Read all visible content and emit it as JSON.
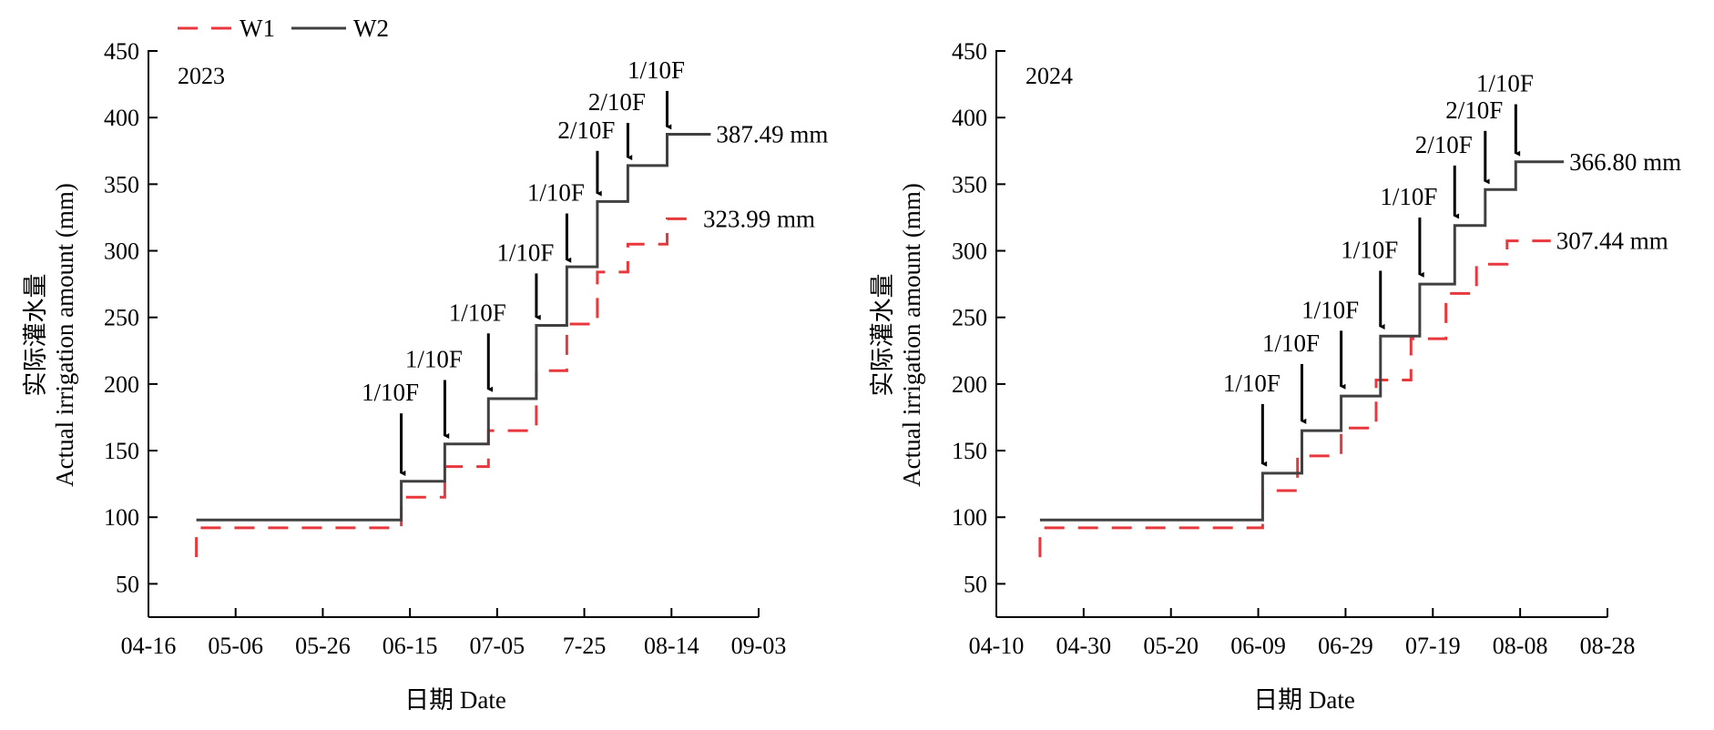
{
  "legend": {
    "items": [
      {
        "name": "W1",
        "color": "#e8383d",
        "dash": true
      },
      {
        "name": "W2",
        "color": "#404040",
        "dash": false
      }
    ]
  },
  "chart_data": [
    {
      "type": "line",
      "panel_label": "2023",
      "xlabel": "日期 Date",
      "ylabel_cn": "实际灌水量",
      "ylabel_en": "Actual irrigation amount (mm)",
      "xlim": [
        "2023-04-16",
        "2023-09-03"
      ],
      "ylim": [
        25,
        450
      ],
      "yticks": [
        50,
        100,
        150,
        200,
        250,
        300,
        350,
        400,
        450
      ],
      "xticks": [
        {
          "date": "2023-04-16",
          "label": "04-16"
        },
        {
          "date": "2023-05-06",
          "label": "05-06"
        },
        {
          "date": "2023-05-26",
          "label": "05-26"
        },
        {
          "date": "2023-06-15",
          "label": "06-15"
        },
        {
          "date": "2023-07-05",
          "label": "07-05"
        },
        {
          "date": "2023-07-25",
          "label": "7-25"
        },
        {
          "date": "2023-08-14",
          "label": "08-14"
        },
        {
          "date": "2023-09-03",
          "label": "09-03"
        }
      ],
      "series": [
        {
          "name": "W1",
          "color": "#e8383d",
          "dash": true,
          "steps": [
            {
              "date": "2023-04-27",
              "y0": 70,
              "y1": 92
            },
            {
              "date": "2023-06-13",
              "y0": 92,
              "y1": 115
            },
            {
              "date": "2023-06-23",
              "y0": 115,
              "y1": 138
            },
            {
              "date": "2023-07-03",
              "y0": 138,
              "y1": 165
            },
            {
              "date": "2023-07-14",
              "y0": 165,
              "y1": 210
            },
            {
              "date": "2023-07-21",
              "y0": 210,
              "y1": 245
            },
            {
              "date": "2023-07-28",
              "y0": 245,
              "y1": 284
            },
            {
              "date": "2023-08-04",
              "y0": 284,
              "y1": 305
            },
            {
              "date": "2023-08-13",
              "y0": 305,
              "y1": 323.99
            }
          ],
          "end": "2023-08-20"
        },
        {
          "name": "W2",
          "color": "#404040",
          "dash": false,
          "steps": [
            {
              "date": "2023-04-27",
              "y0": 98,
              "y1": 98
            },
            {
              "date": "2023-06-13",
              "y0": 98,
              "y1": 127
            },
            {
              "date": "2023-06-23",
              "y0": 127,
              "y1": 155
            },
            {
              "date": "2023-07-03",
              "y0": 155,
              "y1": 189
            },
            {
              "date": "2023-07-14",
              "y0": 189,
              "y1": 244
            },
            {
              "date": "2023-07-21",
              "y0": 244,
              "y1": 288
            },
            {
              "date": "2023-07-28",
              "y0": 288,
              "y1": 337
            },
            {
              "date": "2023-08-04",
              "y0": 337,
              "y1": 364
            },
            {
              "date": "2023-08-13",
              "y0": 364,
              "y1": 387.49
            }
          ],
          "end": "2023-08-23"
        }
      ],
      "end_labels": [
        {
          "text": "387.49 mm",
          "series": "W2"
        },
        {
          "text": "323.99 mm",
          "series": "W1"
        }
      ],
      "annotations": [
        {
          "text": "1/10F",
          "date": "2023-06-13",
          "arrow_top": 178,
          "arrow_tip": 133
        },
        {
          "text": "1/10F",
          "date": "2023-06-23",
          "arrow_top": 203,
          "arrow_tip": 161
        },
        {
          "text": "1/10F",
          "date": "2023-07-03",
          "arrow_top": 238,
          "arrow_tip": 196
        },
        {
          "text": "1/10F",
          "date": "2023-07-14",
          "arrow_top": 283,
          "arrow_tip": 250
        },
        {
          "text": "1/10F",
          "date": "2023-07-21",
          "arrow_top": 328,
          "arrow_tip": 293
        },
        {
          "text": "2/10F",
          "date": "2023-07-28",
          "arrow_top": 375,
          "arrow_tip": 343
        },
        {
          "text": "2/10F",
          "date": "2023-08-04",
          "arrow_top": 396,
          "arrow_tip": 370
        },
        {
          "text": "1/10F",
          "date": "2023-08-13",
          "arrow_top": 420,
          "arrow_tip": 393
        }
      ]
    },
    {
      "type": "line",
      "panel_label": "2024",
      "xlabel": "日期 Date",
      "ylabel_cn": "实际灌水量",
      "ylabel_en": "Actual irrigation amount (mm)",
      "xlim": [
        "2024-04-10",
        "2024-08-28"
      ],
      "ylim": [
        25,
        450
      ],
      "yticks": [
        50,
        100,
        150,
        200,
        250,
        300,
        350,
        400,
        450
      ],
      "xticks": [
        {
          "date": "2024-04-10",
          "label": "04-10"
        },
        {
          "date": "2024-04-30",
          "label": "04-30"
        },
        {
          "date": "2024-05-20",
          "label": "05-20"
        },
        {
          "date": "2024-06-09",
          "label": "06-09"
        },
        {
          "date": "2024-06-29",
          "label": "06-29"
        },
        {
          "date": "2024-07-19",
          "label": "07-19"
        },
        {
          "date": "2024-08-08",
          "label": "08-08"
        },
        {
          "date": "2024-08-28",
          "label": "08-28"
        }
      ],
      "series": [
        {
          "name": "W1",
          "color": "#e8383d",
          "dash": true,
          "steps": [
            {
              "date": "2024-04-20",
              "y0": 70,
              "y1": 92
            },
            {
              "date": "2024-06-10",
              "y0": 92,
              "y1": 120
            },
            {
              "date": "2024-06-18",
              "y0": 120,
              "y1": 146
            },
            {
              "date": "2024-06-28",
              "y0": 146,
              "y1": 167
            },
            {
              "date": "2024-07-06",
              "y0": 167,
              "y1": 203
            },
            {
              "date": "2024-07-14",
              "y0": 203,
              "y1": 234
            },
            {
              "date": "2024-07-22",
              "y0": 234,
              "y1": 268
            },
            {
              "date": "2024-07-29",
              "y0": 268,
              "y1": 290
            },
            {
              "date": "2024-08-05",
              "y0": 290,
              "y1": 307.44
            }
          ],
          "end": "2024-08-15"
        },
        {
          "name": "W2",
          "color": "#404040",
          "dash": false,
          "steps": [
            {
              "date": "2024-04-20",
              "y0": 98,
              "y1": 98
            },
            {
              "date": "2024-06-10",
              "y0": 98,
              "y1": 133
            },
            {
              "date": "2024-06-19",
              "y0": 133,
              "y1": 165
            },
            {
              "date": "2024-06-28",
              "y0": 165,
              "y1": 191
            },
            {
              "date": "2024-07-07",
              "y0": 191,
              "y1": 236
            },
            {
              "date": "2024-07-16",
              "y0": 236,
              "y1": 275
            },
            {
              "date": "2024-07-24",
              "y0": 275,
              "y1": 319
            },
            {
              "date": "2024-07-31",
              "y0": 319,
              "y1": 346
            },
            {
              "date": "2024-08-07",
              "y0": 346,
              "y1": 366.8
            }
          ],
          "end": "2024-08-18"
        }
      ],
      "end_labels": [
        {
          "text": "366.80 mm",
          "series": "W2"
        },
        {
          "text": "307.44 mm",
          "series": "W1"
        }
      ],
      "annotations": [
        {
          "text": "1/10F",
          "date": "2024-06-10",
          "arrow_top": 185,
          "arrow_tip": 140
        },
        {
          "text": "1/10F",
          "date": "2024-06-19",
          "arrow_top": 215,
          "arrow_tip": 172
        },
        {
          "text": "1/10F",
          "date": "2024-06-28",
          "arrow_top": 240,
          "arrow_tip": 198
        },
        {
          "text": "1/10F",
          "date": "2024-07-07",
          "arrow_top": 285,
          "arrow_tip": 243
        },
        {
          "text": "1/10F",
          "date": "2024-07-16",
          "arrow_top": 325,
          "arrow_tip": 282
        },
        {
          "text": "2/10F",
          "date": "2024-07-24",
          "arrow_top": 364,
          "arrow_tip": 326
        },
        {
          "text": "2/10F",
          "date": "2024-07-31",
          "arrow_top": 390,
          "arrow_tip": 352
        },
        {
          "text": "1/10F",
          "date": "2024-08-07",
          "arrow_top": 410,
          "arrow_tip": 373
        }
      ]
    }
  ]
}
